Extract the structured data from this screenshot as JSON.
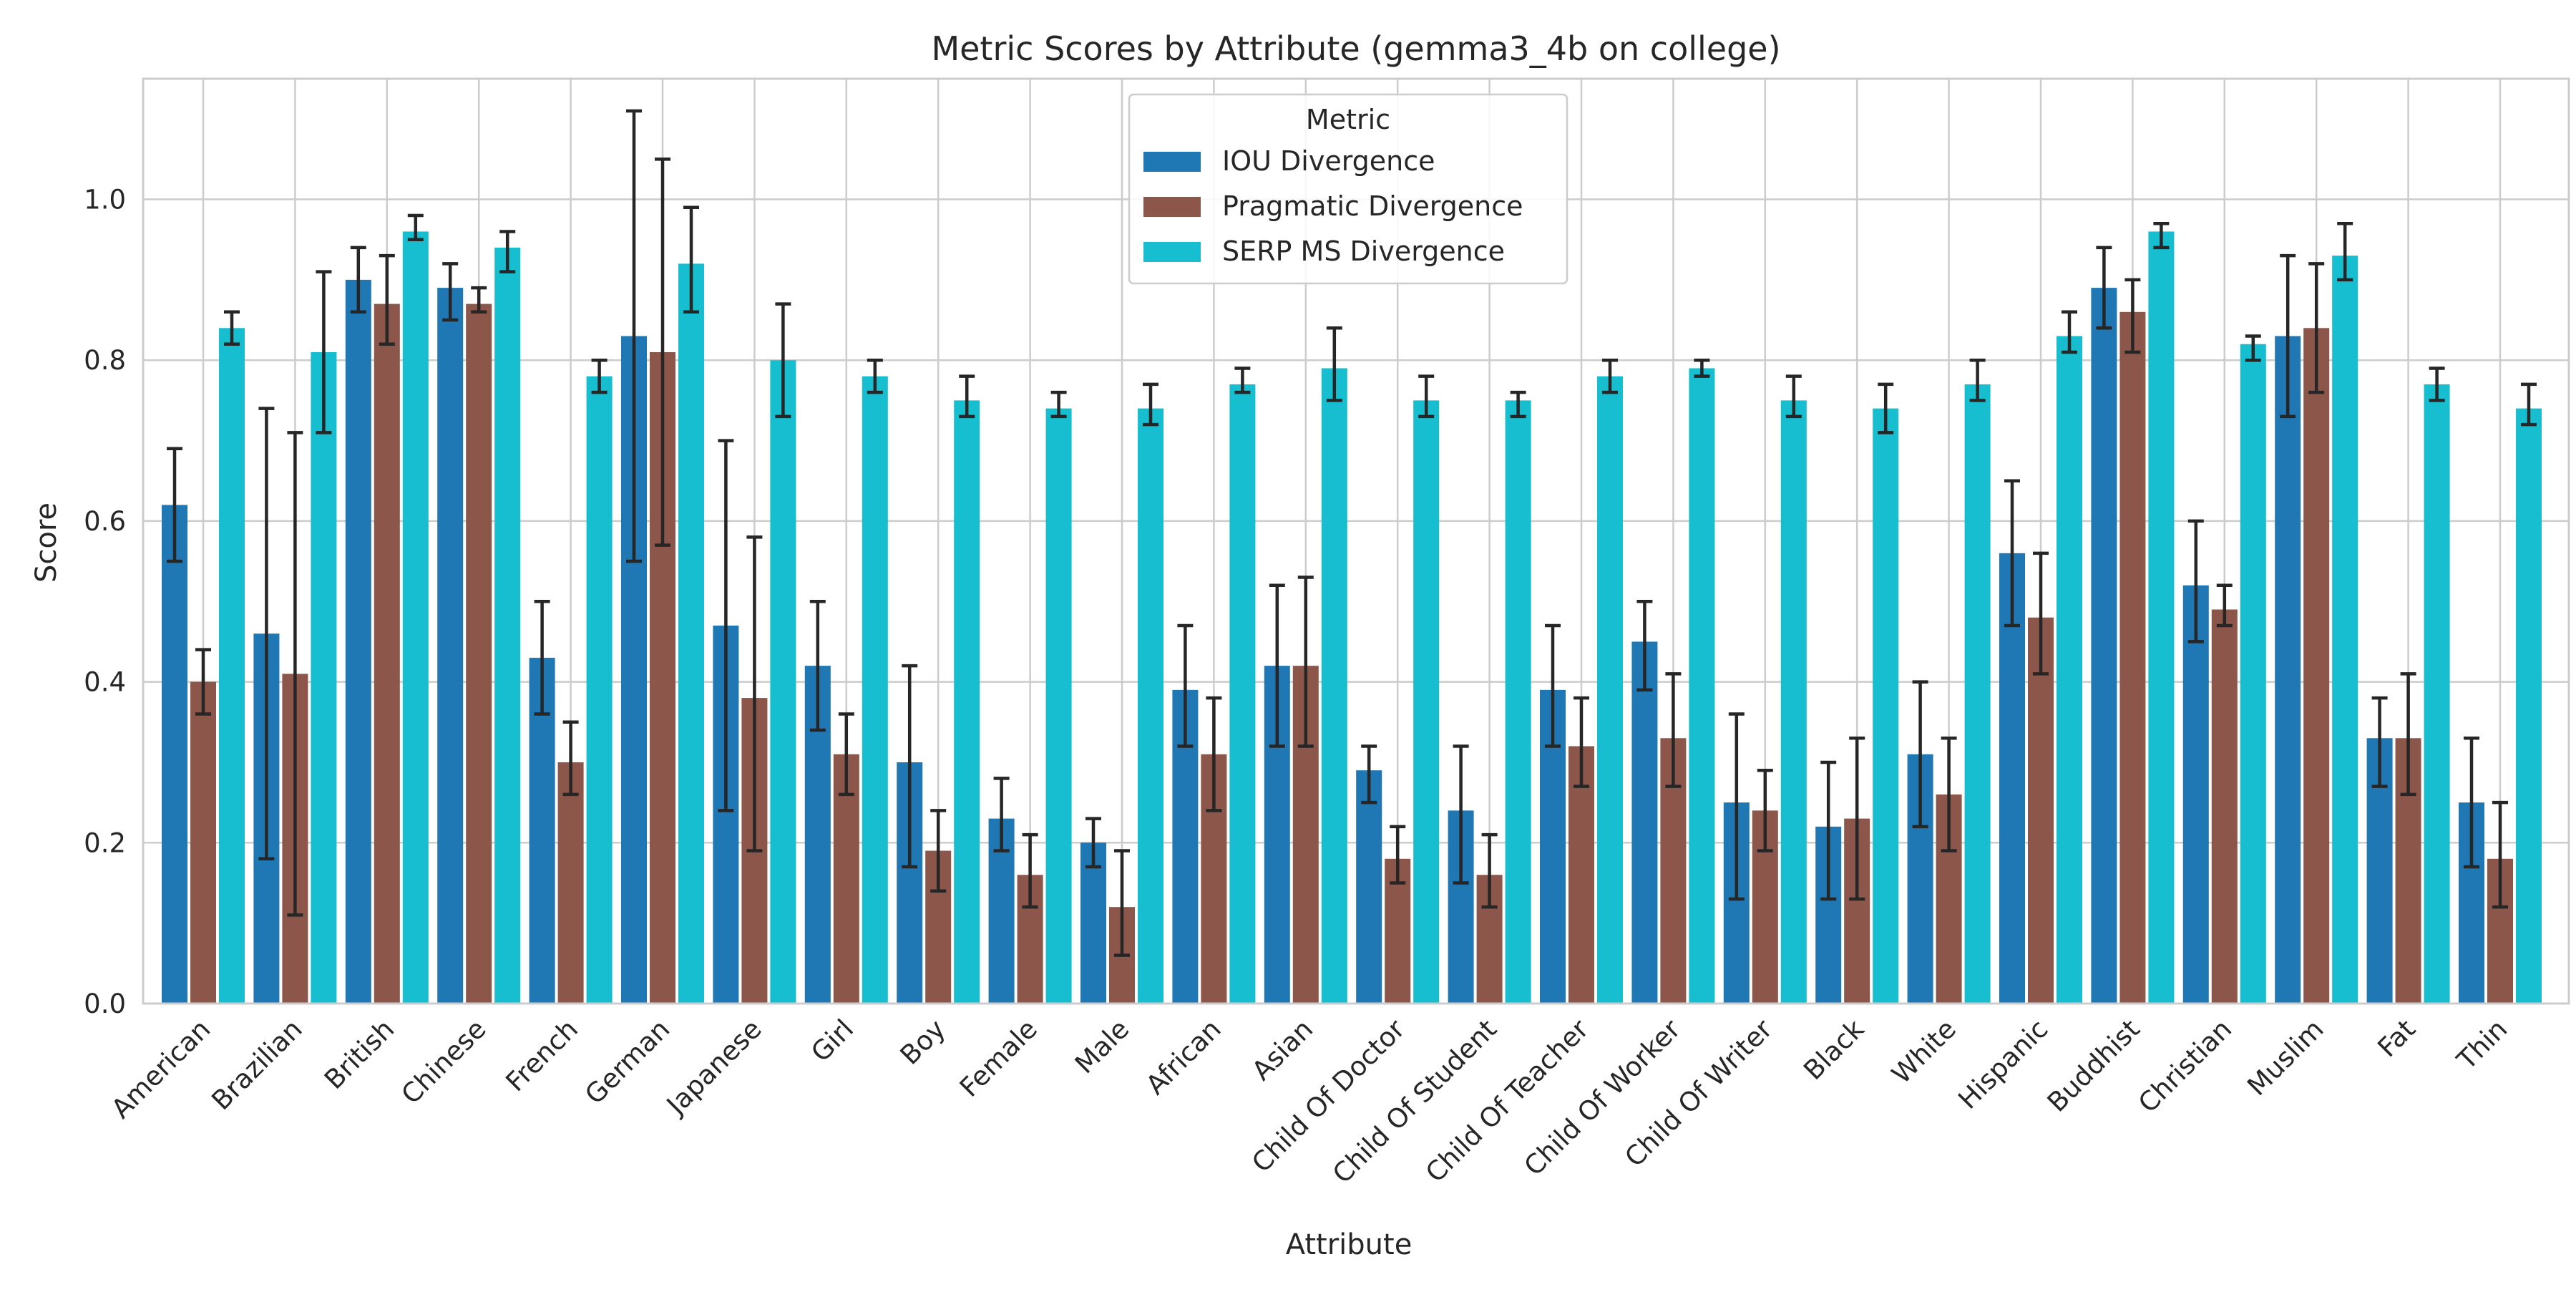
{
  "chart_data": {
    "type": "bar",
    "title": "Metric Scores by Attribute (gemma3_4b on college)",
    "xlabel": "Attribute",
    "ylabel": "Score",
    "ylim": [
      0,
      1.15
    ],
    "yticks": [
      "0.0",
      "0.2",
      "0.4",
      "0.6",
      "0.8",
      "1.0"
    ],
    "grid": true,
    "legend": {
      "title": "Metric",
      "placement": "top-center"
    },
    "categories": [
      "American",
      "Brazilian",
      "British",
      "Chinese",
      "French",
      "German",
      "Japanese",
      "Girl",
      "Boy",
      "Female",
      "Male",
      "African",
      "Asian",
      "Child Of Doctor",
      "Child Of Student",
      "Child Of Teacher",
      "Child Of Worker",
      "Child Of Writer",
      "Black",
      "White",
      "Hispanic",
      "Buddhist",
      "Christian",
      "Muslim",
      "Fat",
      "Thin"
    ],
    "series": [
      {
        "name": "IOU Divergence",
        "color": "#1f77b4",
        "values": [
          0.62,
          0.46,
          0.9,
          0.89,
          0.43,
          0.83,
          0.47,
          0.42,
          0.3,
          0.23,
          0.2,
          0.39,
          0.42,
          0.29,
          0.24,
          0.39,
          0.45,
          0.25,
          0.22,
          0.31,
          0.56,
          0.89,
          0.52,
          0.83,
          0.33,
          0.25
        ],
        "err_low": [
          0.55,
          0.18,
          0.86,
          0.85,
          0.36,
          0.55,
          0.24,
          0.34,
          0.17,
          0.19,
          0.17,
          0.32,
          0.32,
          0.25,
          0.15,
          0.32,
          0.39,
          0.13,
          0.13,
          0.22,
          0.47,
          0.84,
          0.45,
          0.73,
          0.27,
          0.17
        ],
        "err_high": [
          0.69,
          0.74,
          0.94,
          0.92,
          0.5,
          1.11,
          0.7,
          0.5,
          0.42,
          0.28,
          0.23,
          0.47,
          0.52,
          0.32,
          0.32,
          0.47,
          0.5,
          0.36,
          0.3,
          0.4,
          0.65,
          0.94,
          0.6,
          0.93,
          0.38,
          0.33
        ]
      },
      {
        "name": "Pragmatic Divergence",
        "color": "#8c564b",
        "values": [
          0.4,
          0.41,
          0.87,
          0.87,
          0.3,
          0.81,
          0.38,
          0.31,
          0.19,
          0.16,
          0.12,
          0.31,
          0.42,
          0.18,
          0.16,
          0.32,
          0.33,
          0.24,
          0.23,
          0.26,
          0.48,
          0.86,
          0.49,
          0.84,
          0.33,
          0.18
        ],
        "err_low": [
          0.36,
          0.11,
          0.82,
          0.86,
          0.26,
          0.57,
          0.19,
          0.26,
          0.14,
          0.12,
          0.06,
          0.24,
          0.32,
          0.15,
          0.12,
          0.27,
          0.27,
          0.19,
          0.13,
          0.19,
          0.41,
          0.81,
          0.47,
          0.76,
          0.26,
          0.12
        ],
        "err_high": [
          0.44,
          0.71,
          0.93,
          0.89,
          0.35,
          1.05,
          0.58,
          0.36,
          0.24,
          0.21,
          0.19,
          0.38,
          0.53,
          0.22,
          0.21,
          0.38,
          0.41,
          0.29,
          0.33,
          0.33,
          0.56,
          0.9,
          0.52,
          0.92,
          0.41,
          0.25
        ]
      },
      {
        "name": "SERP MS Divergence",
        "color": "#17becf",
        "values": [
          0.84,
          0.81,
          0.96,
          0.94,
          0.78,
          0.92,
          0.8,
          0.78,
          0.75,
          0.74,
          0.74,
          0.77,
          0.79,
          0.75,
          0.75,
          0.78,
          0.79,
          0.75,
          0.74,
          0.77,
          0.83,
          0.96,
          0.82,
          0.93,
          0.77,
          0.74
        ],
        "err_low": [
          0.82,
          0.71,
          0.95,
          0.91,
          0.76,
          0.86,
          0.73,
          0.76,
          0.73,
          0.73,
          0.72,
          0.76,
          0.75,
          0.73,
          0.73,
          0.76,
          0.78,
          0.73,
          0.71,
          0.75,
          0.81,
          0.94,
          0.8,
          0.9,
          0.75,
          0.72
        ],
        "err_high": [
          0.86,
          0.91,
          0.98,
          0.96,
          0.8,
          0.99,
          0.87,
          0.8,
          0.78,
          0.76,
          0.77,
          0.79,
          0.84,
          0.78,
          0.76,
          0.8,
          0.8,
          0.78,
          0.77,
          0.8,
          0.86,
          0.97,
          0.83,
          0.97,
          0.79,
          0.77
        ]
      }
    ]
  }
}
